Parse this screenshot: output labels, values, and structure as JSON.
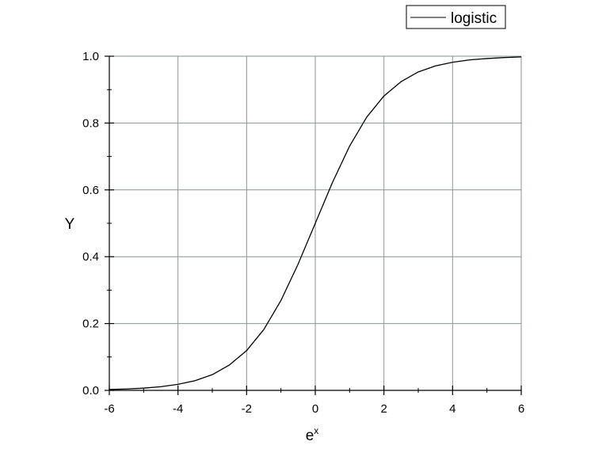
{
  "chart_data": {
    "type": "line",
    "title": "",
    "xlabel_base": "e",
    "xlabel_sup": "x",
    "ylabel": "Y",
    "xlim": [
      -6,
      6
    ],
    "ylim": [
      0,
      1
    ],
    "x_ticks": [
      -6,
      -4,
      -2,
      0,
      2,
      4,
      6
    ],
    "x_tick_labels": [
      "-6",
      "-4",
      "-2",
      "0",
      "2",
      "4",
      "6"
    ],
    "y_ticks": [
      0,
      0.2,
      0.4,
      0.6,
      0.8,
      1.0
    ],
    "y_tick_labels": [
      "0.0",
      "0.2",
      "0.4",
      "0.6",
      "0.8",
      "1.0"
    ],
    "grid": true,
    "legend_position": "top-right",
    "series": [
      {
        "name": "logistic",
        "color": "#000000",
        "x": [
          -6,
          -5.5,
          -5,
          -4.5,
          -4,
          -3.5,
          -3,
          -2.5,
          -2,
          -1.5,
          -1,
          -0.5,
          0,
          0.5,
          1,
          1.5,
          2,
          2.5,
          3,
          3.5,
          4,
          4.5,
          5,
          5.5,
          6
        ],
        "y": [
          0.0025,
          0.0041,
          0.0067,
          0.011,
          0.018,
          0.029,
          0.047,
          0.076,
          0.119,
          0.182,
          0.269,
          0.378,
          0.5,
          0.622,
          0.731,
          0.818,
          0.881,
          0.924,
          0.953,
          0.971,
          0.982,
          0.989,
          0.993,
          0.996,
          0.998
        ]
      }
    ]
  }
}
